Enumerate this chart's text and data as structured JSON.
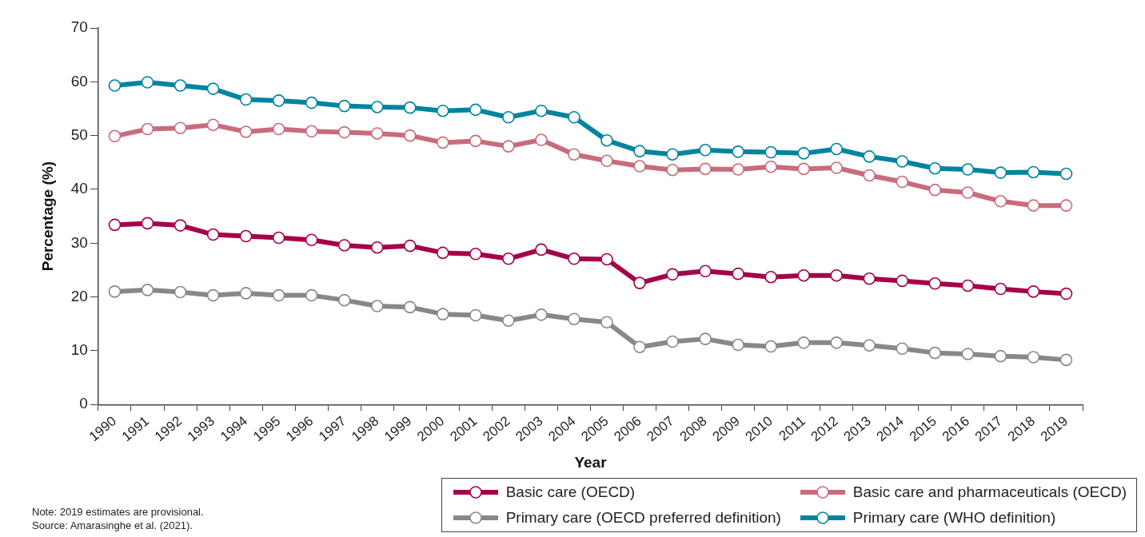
{
  "chart_data": {
    "type": "line",
    "xlabel": "Year",
    "ylabel": "Percentage (%)",
    "categories": [
      "1990",
      "1991",
      "1992",
      "1993",
      "1994",
      "1995",
      "1996",
      "1997",
      "1998",
      "1999",
      "2000",
      "2001",
      "2002",
      "2003",
      "2004",
      "2005",
      "2006",
      "2007",
      "2008",
      "2009",
      "2010",
      "2011",
      "2012",
      "2013",
      "2014",
      "2015",
      "2016",
      "2017",
      "2018",
      "2019"
    ],
    "series": [
      {
        "name": "Basic care (OECD)",
        "color": "#a6004a",
        "values": [
          33.4,
          33.7,
          33.3,
          31.6,
          31.3,
          31.0,
          30.6,
          29.6,
          29.2,
          29.5,
          28.2,
          28.0,
          27.1,
          28.8,
          27.1,
          27.0,
          22.6,
          24.2,
          24.8,
          24.3,
          23.7,
          24.0,
          24.0,
          23.4,
          23.0,
          22.5,
          22.1,
          21.5,
          21.0,
          20.6
        ]
      },
      {
        "name": "Basic care and pharmaceuticals (OECD)",
        "color": "#c96b7b",
        "values": [
          49.9,
          51.2,
          51.4,
          52.0,
          50.7,
          51.2,
          50.8,
          50.6,
          50.4,
          50.0,
          48.7,
          49.0,
          48.0,
          49.2,
          46.5,
          45.3,
          44.3,
          43.6,
          43.8,
          43.7,
          44.2,
          43.8,
          44.0,
          42.6,
          41.4,
          39.9,
          39.4,
          37.8,
          37.0,
          37.0
        ]
      },
      {
        "name": "Primary care (OECD preferred definition)",
        "color": "#87888c",
        "values": [
          21.0,
          21.3,
          20.9,
          20.3,
          20.7,
          20.3,
          20.3,
          19.4,
          18.3,
          18.1,
          16.8,
          16.6,
          15.6,
          16.7,
          15.9,
          15.3,
          10.7,
          11.7,
          12.2,
          11.1,
          10.8,
          11.5,
          11.5,
          11.0,
          10.4,
          9.6,
          9.4,
          9.0,
          8.8,
          8.3
        ]
      },
      {
        "name": "Primary care (WHO definition)",
        "color": "#00849f",
        "values": [
          59.3,
          59.9,
          59.3,
          58.7,
          56.7,
          56.5,
          56.1,
          55.5,
          55.3,
          55.2,
          54.6,
          54.8,
          53.4,
          54.6,
          53.4,
          49.1,
          47.1,
          46.5,
          47.3,
          47.0,
          46.9,
          46.7,
          47.5,
          46.1,
          45.2,
          43.9,
          43.7,
          43.1,
          43.2,
          42.9
        ]
      }
    ],
    "ylim": [
      0,
      70
    ],
    "yticks": [
      0,
      10,
      20,
      30,
      40,
      50,
      60,
      70
    ],
    "grid": false,
    "legend": "bottom right",
    "marker": "circle",
    "line_style": "solid",
    "annotations": [
      "Note: 2019 estimates are provisional.",
      "Source: Amarasinghe et al. (2021)."
    ]
  }
}
